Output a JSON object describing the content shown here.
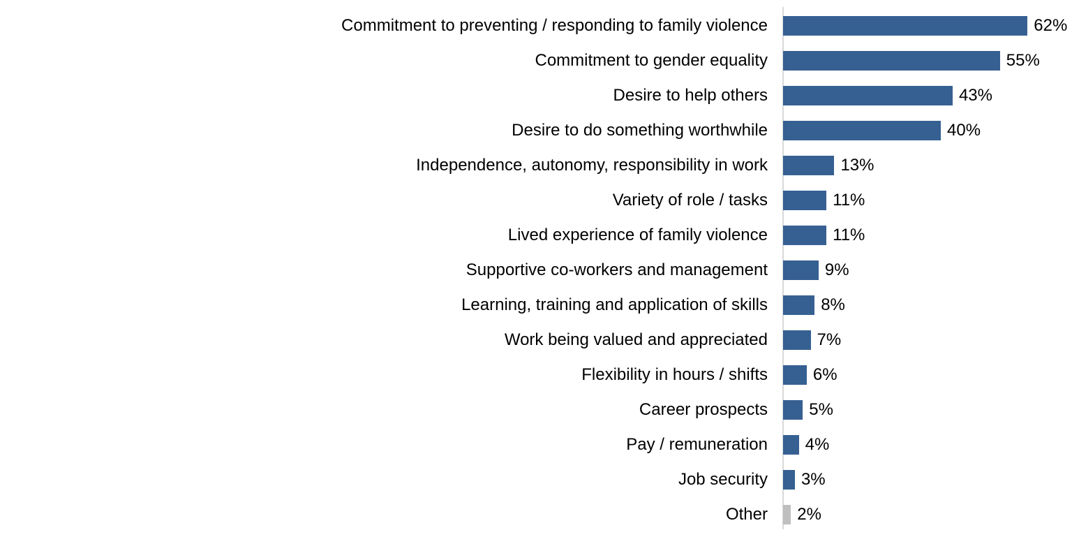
{
  "chart_data": {
    "type": "bar",
    "orientation": "horizontal",
    "title": "",
    "xlabel": "",
    "ylabel": "",
    "unit": "%",
    "xlim": [
      0,
      73
    ],
    "grid": false,
    "legend_position": "none",
    "axis_line_color": "#d9d9d9",
    "default_bar_color": "#366092",
    "categories": [
      "Commitment to preventing / responding to family violence",
      "Commitment to gender equality",
      "Desire to help others",
      "Desire to do something worthwhile",
      "Independence, autonomy, responsibility in work",
      "Variety of role / tasks",
      "Lived experience of family violence",
      "Supportive co-workers and management",
      "Learning, training and application of skills",
      "Work being valued and appreciated",
      "Flexibility in hours / shifts",
      "Career prospects",
      "Pay / remuneration",
      "Job security",
      "Other"
    ],
    "values": [
      62,
      55,
      43,
      40,
      13,
      11,
      11,
      9,
      8,
      7,
      6,
      5,
      4,
      3,
      2
    ],
    "data_labels": [
      "62%",
      "55%",
      "43%",
      "40%",
      "13%",
      "11%",
      "11%",
      "9%",
      "8%",
      "7%",
      "6%",
      "5%",
      "4%",
      "3%",
      "2%"
    ],
    "bar_colors": [
      "#366092",
      "#366092",
      "#366092",
      "#366092",
      "#366092",
      "#366092",
      "#366092",
      "#366092",
      "#366092",
      "#366092",
      "#366092",
      "#366092",
      "#366092",
      "#366092",
      "#bfbfbf"
    ]
  }
}
